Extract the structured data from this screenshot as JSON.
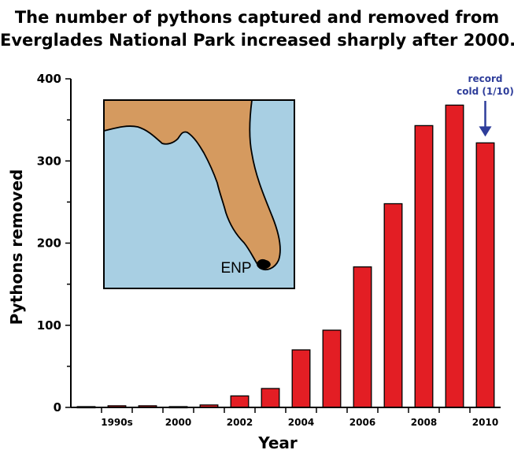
{
  "title_lines": [
    "The number of pythons captured and removed from",
    "Everglades National Park increased sharply after 2000."
  ],
  "chart_data": {
    "type": "bar",
    "title": "The number of pythons captured and removed from Everglades National Park increased sharply after 2000.",
    "xlabel": "Year",
    "ylabel": "Pythons removed",
    "ylim": [
      0,
      400
    ],
    "yticks": [
      0,
      100,
      200,
      300,
      400
    ],
    "categories": [
      "",
      "1990s",
      "",
      "2000",
      "",
      "2002",
      "",
      "2004",
      "",
      "2006",
      "",
      "2008",
      "",
      "2010"
    ],
    "values": [
      1,
      2,
      2,
      1,
      3,
      14,
      23,
      70,
      94,
      171,
      248,
      343,
      368,
      322
    ],
    "annotation": {
      "text_lines": [
        "record",
        "cold (1/10)"
      ],
      "color": "#2e3d9a"
    },
    "bar_color": "#e31e24",
    "grid": false,
    "legend": "none"
  },
  "inset_map": {
    "label": "ENP",
    "water_color": "#a8cfe3",
    "land_color": "#d59a5f"
  }
}
